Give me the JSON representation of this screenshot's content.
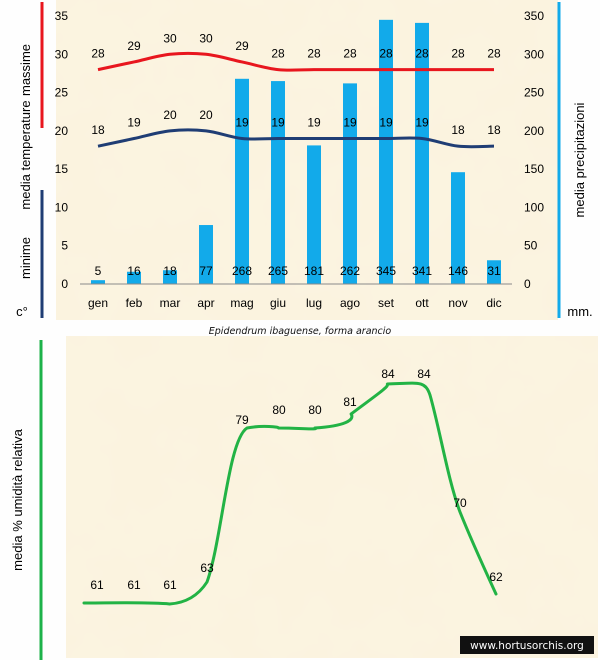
{
  "colors": {
    "max_line": "#e8161e",
    "min_line": "#1f3d74",
    "bars": "#12aaea",
    "humidity_line": "#22b345",
    "paper": "#f7ecd0",
    "axis_green": "#1db24a"
  },
  "caption": "Epidendrum ibaguense, forma arancio",
  "credit": "www.hortusorchis.org",
  "left_labels": {
    "massime": "massime",
    "media_temperature": "media  temperature",
    "minime": "minime",
    "unit": "c°"
  },
  "right_labels": {
    "media_precipitazioni": "media  precipitazioni",
    "unit": "mm."
  },
  "bottom_labels": {
    "ylabel": "media %  umidità relativa"
  },
  "chart_data": [
    {
      "type": "bar",
      "title": "",
      "categories": [
        "gen",
        "feb",
        "mar",
        "apr",
        "mag",
        "giu",
        "lug",
        "ago",
        "set",
        "ott",
        "nov",
        "dic"
      ],
      "y_left": {
        "label": "media temperature",
        "ylim": [
          0,
          35
        ],
        "ticks": [
          "0",
          "5",
          "10",
          "15",
          "20",
          "25",
          "30",
          "35"
        ]
      },
      "y_right": {
        "label": "media precipitazioni",
        "ylim": [
          0,
          350
        ],
        "ticks": [
          "0",
          "50",
          "100",
          "150",
          "200",
          "250",
          "300",
          "350"
        ]
      },
      "series": [
        {
          "name": "precipitazioni (mm)",
          "kind": "bar",
          "axis": "right",
          "values": [
            5,
            16,
            18,
            77,
            268,
            265,
            181,
            262,
            345,
            341,
            146,
            31
          ],
          "labels": [
            "5",
            "16",
            "18",
            "77",
            "268",
            "265",
            "181",
            "262",
            "345",
            "341",
            "146",
            "31"
          ]
        },
        {
          "name": "massime",
          "kind": "line",
          "axis": "left",
          "values": [
            28,
            29,
            30,
            30,
            29,
            28,
            28,
            28,
            28,
            28,
            28,
            28
          ],
          "labels": [
            "28",
            "29",
            "30",
            "30",
            "29",
            "28",
            "28",
            "28",
            "28",
            "28",
            "28",
            "28"
          ]
        },
        {
          "name": "minime",
          "kind": "line",
          "axis": "left",
          "values": [
            18,
            19,
            20,
            20,
            19,
            19,
            19,
            19,
            19,
            19,
            18,
            18
          ],
          "labels": [
            "18",
            "19",
            "20",
            "20",
            "19",
            "19",
            "19",
            "19",
            "19",
            "19",
            "18",
            "18"
          ]
        }
      ]
    },
    {
      "type": "line",
      "title": "",
      "ylabel": "media % umidità relativa",
      "ylim": [
        55,
        90
      ],
      "series": [
        {
          "name": "umidità relativa (%)",
          "values": [
            61,
            61,
            61,
            63,
            79,
            80,
            80,
            81,
            84,
            84,
            70,
            62
          ],
          "labels": [
            "61",
            "61",
            "61",
            "63",
            "79",
            "80",
            "80",
            "81",
            "84",
            "84",
            "70",
            "62"
          ]
        }
      ]
    }
  ]
}
